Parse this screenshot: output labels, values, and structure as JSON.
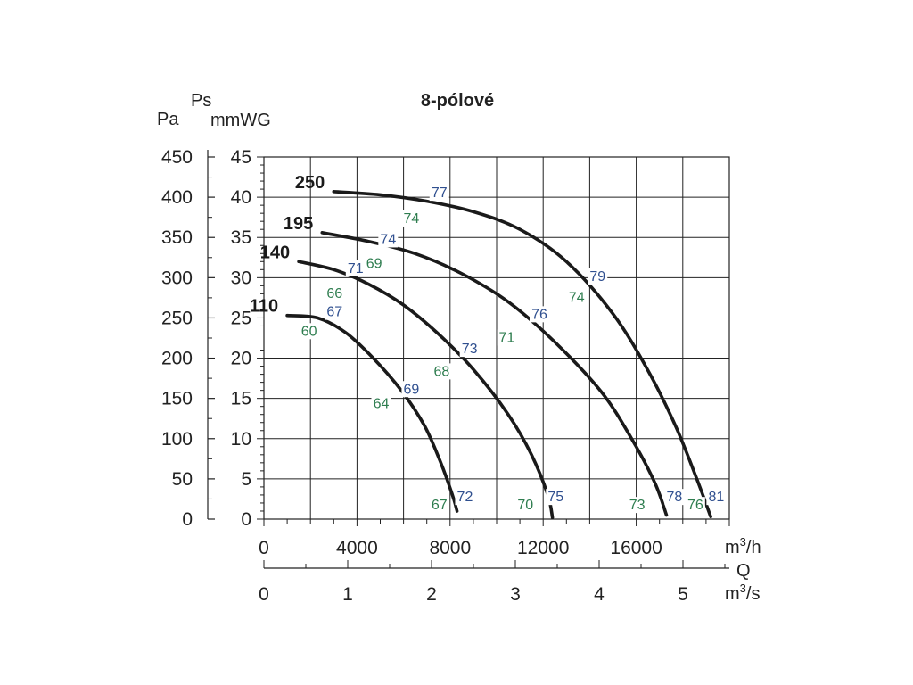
{
  "chart_data": {
    "type": "line",
    "title": "8-pólové",
    "y_left_symbol": "Ps",
    "y_left_units": [
      "Pa",
      "mmWG"
    ],
    "x_units_top": "m³/h",
    "x_symbol": "Q",
    "x_units_bottom": "m³/s",
    "xlim": [
      0,
      20000
    ],
    "ylim_mmwg": [
      0,
      45
    ],
    "ylim_pa": [
      0,
      450
    ],
    "x_ticks": [
      "0",
      "4000",
      "8000",
      "12000",
      "16000"
    ],
    "x_ticks_values": [
      0,
      4000,
      8000,
      12000,
      16000
    ],
    "x2_ticks": [
      "0",
      "1",
      "2",
      "3",
      "4",
      "5"
    ],
    "x2_ticks_values": [
      0,
      1,
      2,
      3,
      4,
      5
    ],
    "y_ticks_mmwg": [
      "0",
      "5",
      "10",
      "15",
      "20",
      "25",
      "30",
      "35",
      "40",
      "45"
    ],
    "y_ticks_pa": [
      "0",
      "50",
      "100",
      "150",
      "200",
      "250",
      "300",
      "350",
      "400",
      "450"
    ],
    "grid": true,
    "series": [
      {
        "name": "110",
        "points": [
          [
            1000,
            25.3
          ],
          [
            2300,
            25.0
          ],
          [
            3500,
            23.2
          ],
          [
            4700,
            20.0
          ],
          [
            5900,
            16.0
          ],
          [
            6900,
            11.6
          ],
          [
            7600,
            7.0
          ],
          [
            8100,
            3.0
          ],
          [
            8300,
            1.0
          ]
        ]
      },
      {
        "name": "140",
        "points": [
          [
            1500,
            32.0
          ],
          [
            3000,
            31.0
          ],
          [
            4500,
            29.2
          ],
          [
            6000,
            26.6
          ],
          [
            7500,
            23.0
          ],
          [
            9000,
            18.6
          ],
          [
            10500,
            13.0
          ],
          [
            11500,
            8.0
          ],
          [
            12200,
            3.0
          ],
          [
            12400,
            0.2
          ]
        ]
      },
      {
        "name": "195",
        "points": [
          [
            2500,
            35.6
          ],
          [
            4500,
            34.5
          ],
          [
            6500,
            33.0
          ],
          [
            8500,
            30.5
          ],
          [
            10500,
            27.0
          ],
          [
            12500,
            22.0
          ],
          [
            14500,
            15.8
          ],
          [
            15800,
            10.0
          ],
          [
            16800,
            4.5
          ],
          [
            17300,
            0.5
          ]
        ]
      },
      {
        "name": "250",
        "points": [
          [
            3000,
            40.7
          ],
          [
            5000,
            40.3
          ],
          [
            7000,
            39.5
          ],
          [
            9000,
            38.2
          ],
          [
            11000,
            36.0
          ],
          [
            13000,
            32.0
          ],
          [
            15000,
            25.5
          ],
          [
            16500,
            18.5
          ],
          [
            17700,
            11.5
          ],
          [
            18600,
            5.0
          ],
          [
            19200,
            0.3
          ]
        ]
      }
    ],
    "annotations": [
      {
        "text": "77",
        "x": 7500,
        "y": 40.0,
        "color": "#2f4f8f"
      },
      {
        "text": "74",
        "x": 6300,
        "y": 36.8,
        "color": "#2e7d4f"
      },
      {
        "text": "74",
        "x": 5300,
        "y": 34.2,
        "color": "#2f4f8f"
      },
      {
        "text": "71",
        "x": 3900,
        "y": 30.6,
        "color": "#2f4f8f"
      },
      {
        "text": "69",
        "x": 4700,
        "y": 31.2,
        "color": "#2e7d4f"
      },
      {
        "text": "66",
        "x": 3000,
        "y": 27.5,
        "color": "#2e7d4f"
      },
      {
        "text": "67",
        "x": 3000,
        "y": 25.2,
        "color": "#2f4f8f"
      },
      {
        "text": "60",
        "x": 1900,
        "y": 22.8,
        "color": "#2e7d4f"
      },
      {
        "text": "79",
        "x": 14300,
        "y": 29.6,
        "color": "#2f4f8f"
      },
      {
        "text": "74",
        "x": 13400,
        "y": 27.0,
        "color": "#2e7d4f"
      },
      {
        "text": "76",
        "x": 11800,
        "y": 24.9,
        "color": "#2f4f8f"
      },
      {
        "text": "71",
        "x": 10400,
        "y": 22.0,
        "color": "#2e7d4f"
      },
      {
        "text": "73",
        "x": 8800,
        "y": 20.6,
        "color": "#2f4f8f"
      },
      {
        "text": "68",
        "x": 7600,
        "y": 17.8,
        "color": "#2e7d4f"
      },
      {
        "text": "69",
        "x": 6300,
        "y": 15.6,
        "color": "#2f4f8f"
      },
      {
        "text": "64",
        "x": 5000,
        "y": 13.8,
        "color": "#2e7d4f"
      },
      {
        "text": "72",
        "x": 8600,
        "y": 2.2,
        "color": "#2f4f8f"
      },
      {
        "text": "67",
        "x": 7500,
        "y": 1.2,
        "color": "#2e7d4f"
      },
      {
        "text": "75",
        "x": 12500,
        "y": 2.2,
        "color": "#2f4f8f"
      },
      {
        "text": "70",
        "x": 11200,
        "y": 1.2,
        "color": "#2e7d4f"
      },
      {
        "text": "78",
        "x": 17600,
        "y": 2.2,
        "color": "#2f4f8f"
      },
      {
        "text": "73",
        "x": 16000,
        "y": 1.2,
        "color": "#2e7d4f"
      },
      {
        "text": "81",
        "x": 19400,
        "y": 2.2,
        "color": "#2f4f8f"
      },
      {
        "text": "76",
        "x": 18500,
        "y": 1.2,
        "color": "#2e7d4f"
      }
    ],
    "colors": {
      "curve": "#1a1a1a",
      "grid": "#222222",
      "text": "#222222"
    }
  }
}
